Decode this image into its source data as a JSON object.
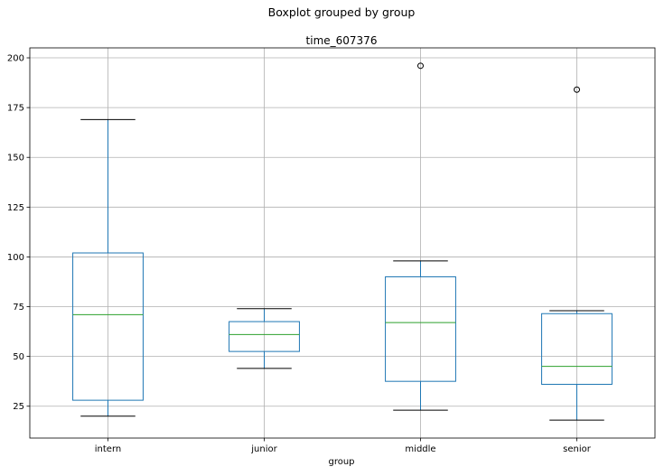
{
  "figure_title": "Boxplot grouped by group",
  "chart_data": {
    "type": "boxplot",
    "title": "time_607376",
    "xlabel": "group",
    "ylabel": "",
    "ylim": [
      9,
      205
    ],
    "yticks": [
      25,
      50,
      75,
      100,
      125,
      150,
      175,
      200
    ],
    "grid": true,
    "categories": [
      "intern",
      "junior",
      "middle",
      "senior"
    ],
    "boxes": [
      {
        "category": "intern",
        "whisker_low": 20,
        "q1": 28,
        "median": 71,
        "q3": 102,
        "whisker_high": 169,
        "outliers": []
      },
      {
        "category": "junior",
        "whisker_low": 44,
        "q1": 52.5,
        "median": 61,
        "q3": 67.5,
        "whisker_high": 74,
        "outliers": []
      },
      {
        "category": "middle",
        "whisker_low": 23,
        "q1": 37.5,
        "median": 67,
        "q3": 90,
        "whisker_high": 98,
        "outliers": [
          196
        ]
      },
      {
        "category": "senior",
        "whisker_low": 18,
        "q1": 36,
        "median": 45,
        "q3": 71.5,
        "whisker_high": 73,
        "outliers": [
          184
        ]
      }
    ],
    "colors": {
      "box": "#1f77b4",
      "median": "#2ca02c",
      "whisker_cap": "#000000",
      "grid": "#b0b0b0",
      "outlier": "#000000"
    }
  }
}
